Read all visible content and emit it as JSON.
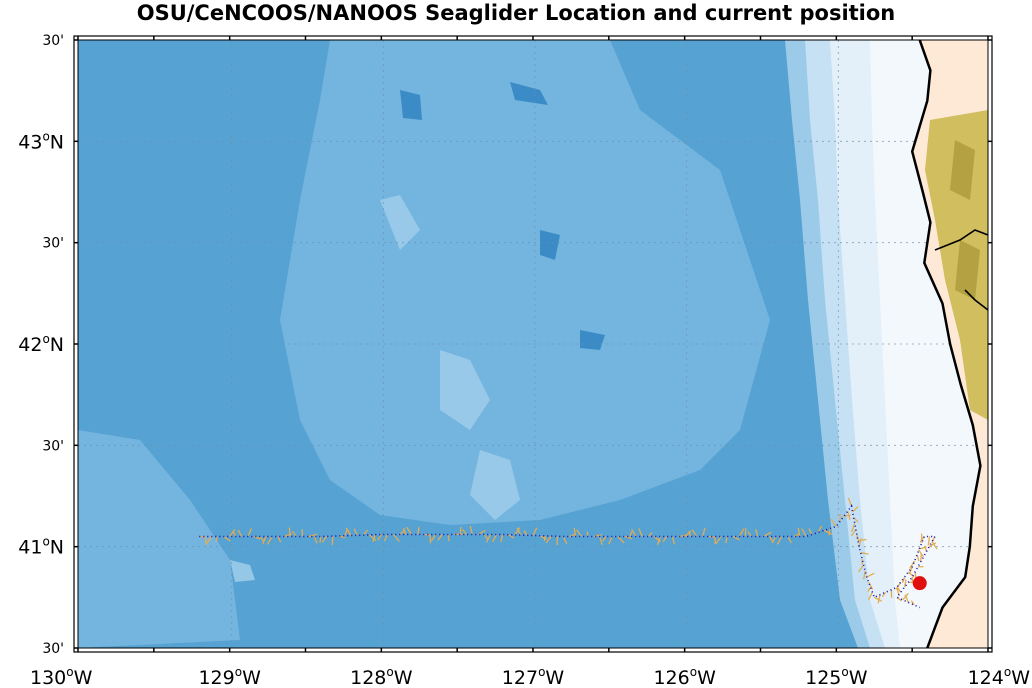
{
  "title": "OSU/CeNCOOS/NANOOS Seaglider Location and current position",
  "map": {
    "lon_range": [
      -130,
      -124
    ],
    "lat_range": [
      40.5,
      43.5
    ],
    "projection": "lon-lat",
    "grid": true,
    "deg_symbol": "o",
    "y_labels": [
      {
        "lat": 43.5,
        "text": "30'",
        "kind": "minor"
      },
      {
        "lat": 43.0,
        "main": "43",
        "hemi": "N",
        "kind": "major"
      },
      {
        "lat": 42.5,
        "text": "30'",
        "kind": "minor"
      },
      {
        "lat": 42.0,
        "main": "42",
        "hemi": "N",
        "kind": "major"
      },
      {
        "lat": 41.5,
        "text": "30'",
        "kind": "minor"
      },
      {
        "lat": 41.0,
        "main": "41",
        "hemi": "N",
        "kind": "major"
      },
      {
        "lat": 40.5,
        "text": "30'",
        "kind": "minor"
      }
    ],
    "x_labels": [
      {
        "lon": -130,
        "main": "130",
        "hemi": "W"
      },
      {
        "lon": -129,
        "main": "129",
        "hemi": "W"
      },
      {
        "lon": -128,
        "main": "128",
        "hemi": "W"
      },
      {
        "lon": -127,
        "main": "127",
        "hemi": "W"
      },
      {
        "lon": -126,
        "main": "126",
        "hemi": "W"
      },
      {
        "lon": -125,
        "main": "125",
        "hemi": "W"
      },
      {
        "lon": -124,
        "main": "124",
        "hemi": "W"
      }
    ],
    "colors": {
      "deep_ocean": "#56a2d2",
      "mid_ocean": "#74b5df",
      "shallow_ocean": "#9ccbe9",
      "shelf_1": "#c6e1f3",
      "shelf_2": "#e3f0f9",
      "shelf_3": "#f3f8fc",
      "land": "#fde9d6",
      "terrain": "#c9b64a",
      "coastline": "#000000",
      "track": "#1010b8",
      "vectors": "#e3ad52",
      "current_position": "#e01010"
    },
    "coastline": [
      [
        -124.45,
        43.5
      ],
      [
        -124.38,
        43.35
      ],
      [
        -124.4,
        43.2
      ],
      [
        -124.5,
        42.95
      ],
      [
        -124.43,
        42.75
      ],
      [
        -124.38,
        42.6
      ],
      [
        -124.42,
        42.4
      ],
      [
        -124.3,
        42.2
      ],
      [
        -124.25,
        42.0
      ],
      [
        -124.18,
        41.8
      ],
      [
        -124.1,
        41.6
      ],
      [
        -124.05,
        41.4
      ],
      [
        -124.1,
        41.2
      ],
      [
        -124.12,
        41.0
      ],
      [
        -124.15,
        40.85
      ],
      [
        -124.3,
        40.7
      ],
      [
        -124.35,
        40.6
      ],
      [
        -124.4,
        40.5
      ]
    ],
    "track": [
      [
        -129.2,
        41.05
      ],
      [
        -128.8,
        41.05
      ],
      [
        -128.4,
        41.05
      ],
      [
        -128.0,
        41.06
      ],
      [
        -127.6,
        41.06
      ],
      [
        -127.2,
        41.06
      ],
      [
        -126.8,
        41.05
      ],
      [
        -126.4,
        41.05
      ],
      [
        -126.0,
        41.05
      ],
      [
        -125.6,
        41.05
      ],
      [
        -125.2,
        41.05
      ],
      [
        -125.0,
        41.1
      ],
      [
        -124.9,
        41.2
      ],
      [
        -124.85,
        41.0
      ],
      [
        -124.8,
        40.85
      ],
      [
        -124.75,
        40.75
      ],
      [
        -124.6,
        40.8
      ],
      [
        -124.5,
        40.9
      ],
      [
        -124.42,
        41.05
      ],
      [
        -124.35,
        41.05
      ],
      [
        -124.5,
        40.85
      ],
      [
        -124.6,
        40.75
      ],
      [
        -124.45,
        40.7
      ]
    ],
    "current_position": {
      "lon": -124.45,
      "lat": 40.82
    }
  }
}
